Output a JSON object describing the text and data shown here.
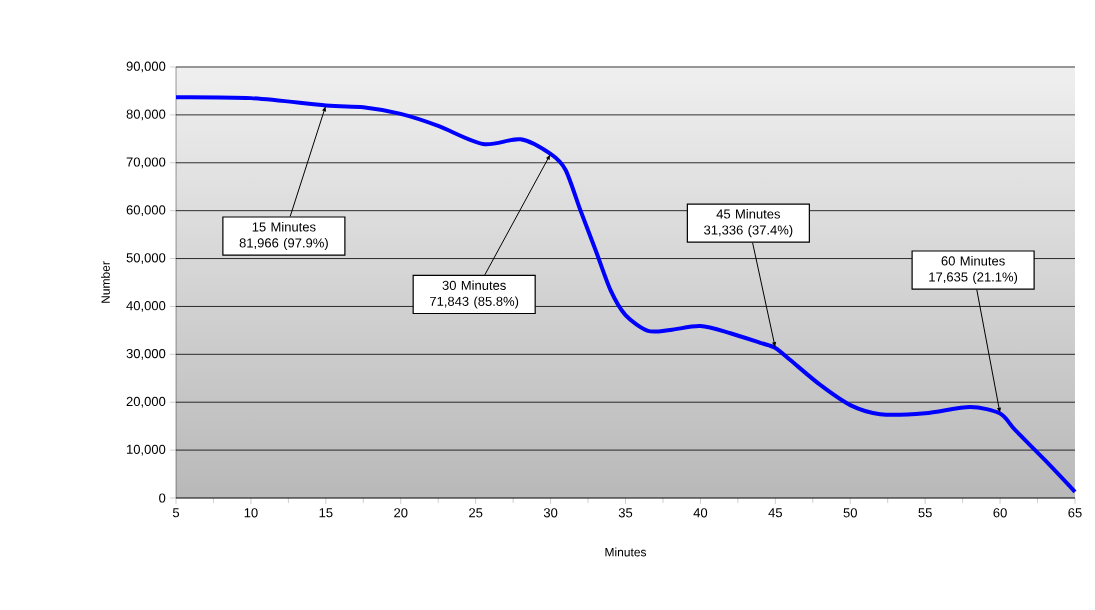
{
  "chart_data": {
    "type": "line",
    "xlabel": "Minutes",
    "ylabel": "Number",
    "x": [
      5,
      10,
      15,
      17.5,
      20,
      22.5,
      25.5,
      28,
      30,
      31,
      32,
      33,
      34,
      35,
      36.5,
      38,
      40,
      42,
      44,
      45,
      46,
      48,
      50,
      52,
      55,
      58,
      60,
      61,
      63,
      65
    ],
    "series": [
      {
        "color": "#0000ff",
        "values": [
          83700,
          83500,
          81966,
          81600,
          80200,
          77700,
          73900,
          74900,
          71843,
          68500,
          60000,
          51800,
          43400,
          38200,
          34900,
          35100,
          35900,
          34400,
          32400,
          31336,
          28800,
          23600,
          19400,
          17500,
          17700,
          19000,
          17635,
          14200,
          7900,
          1300
        ]
      }
    ],
    "xlim": [
      5,
      65
    ],
    "xticks": [
      5,
      10,
      15,
      20,
      25,
      30,
      35,
      40,
      45,
      50,
      55,
      60,
      65
    ],
    "ylim": [
      0,
      90000
    ],
    "yticks": [
      0,
      {
        "value": 10000,
        "label": "10,000"
      },
      {
        "value": 20000,
        "label": "20,000"
      },
      {
        "value": 30000,
        "label": "30,000"
      },
      {
        "value": 40000,
        "label": "40,000"
      },
      {
        "value": 50000,
        "label": "50,000"
      },
      {
        "value": 60000,
        "label": "60,000"
      },
      {
        "value": 70000,
        "label": "70,000"
      },
      {
        "value": 80000,
        "label": "80,000"
      },
      {
        "value": 90000,
        "label": "90,000"
      }
    ],
    "grid": "y",
    "marker": "none",
    "line_style": "solid",
    "annotations": [
      {
        "text": "15 Minutes 81,966 (97.9%)",
        "x": 15,
        "y": 81966
      },
      {
        "text": "30 Minutes 71,843 (85.8%)",
        "x": 30,
        "y": 71843
      },
      {
        "text": "45 Minutes 31,336 (37.4%)",
        "x": 45,
        "y": 31336
      },
      {
        "text": "60 Minutes 17,635 (21.1%)",
        "x": 60,
        "y": 17635
      }
    ]
  }
}
